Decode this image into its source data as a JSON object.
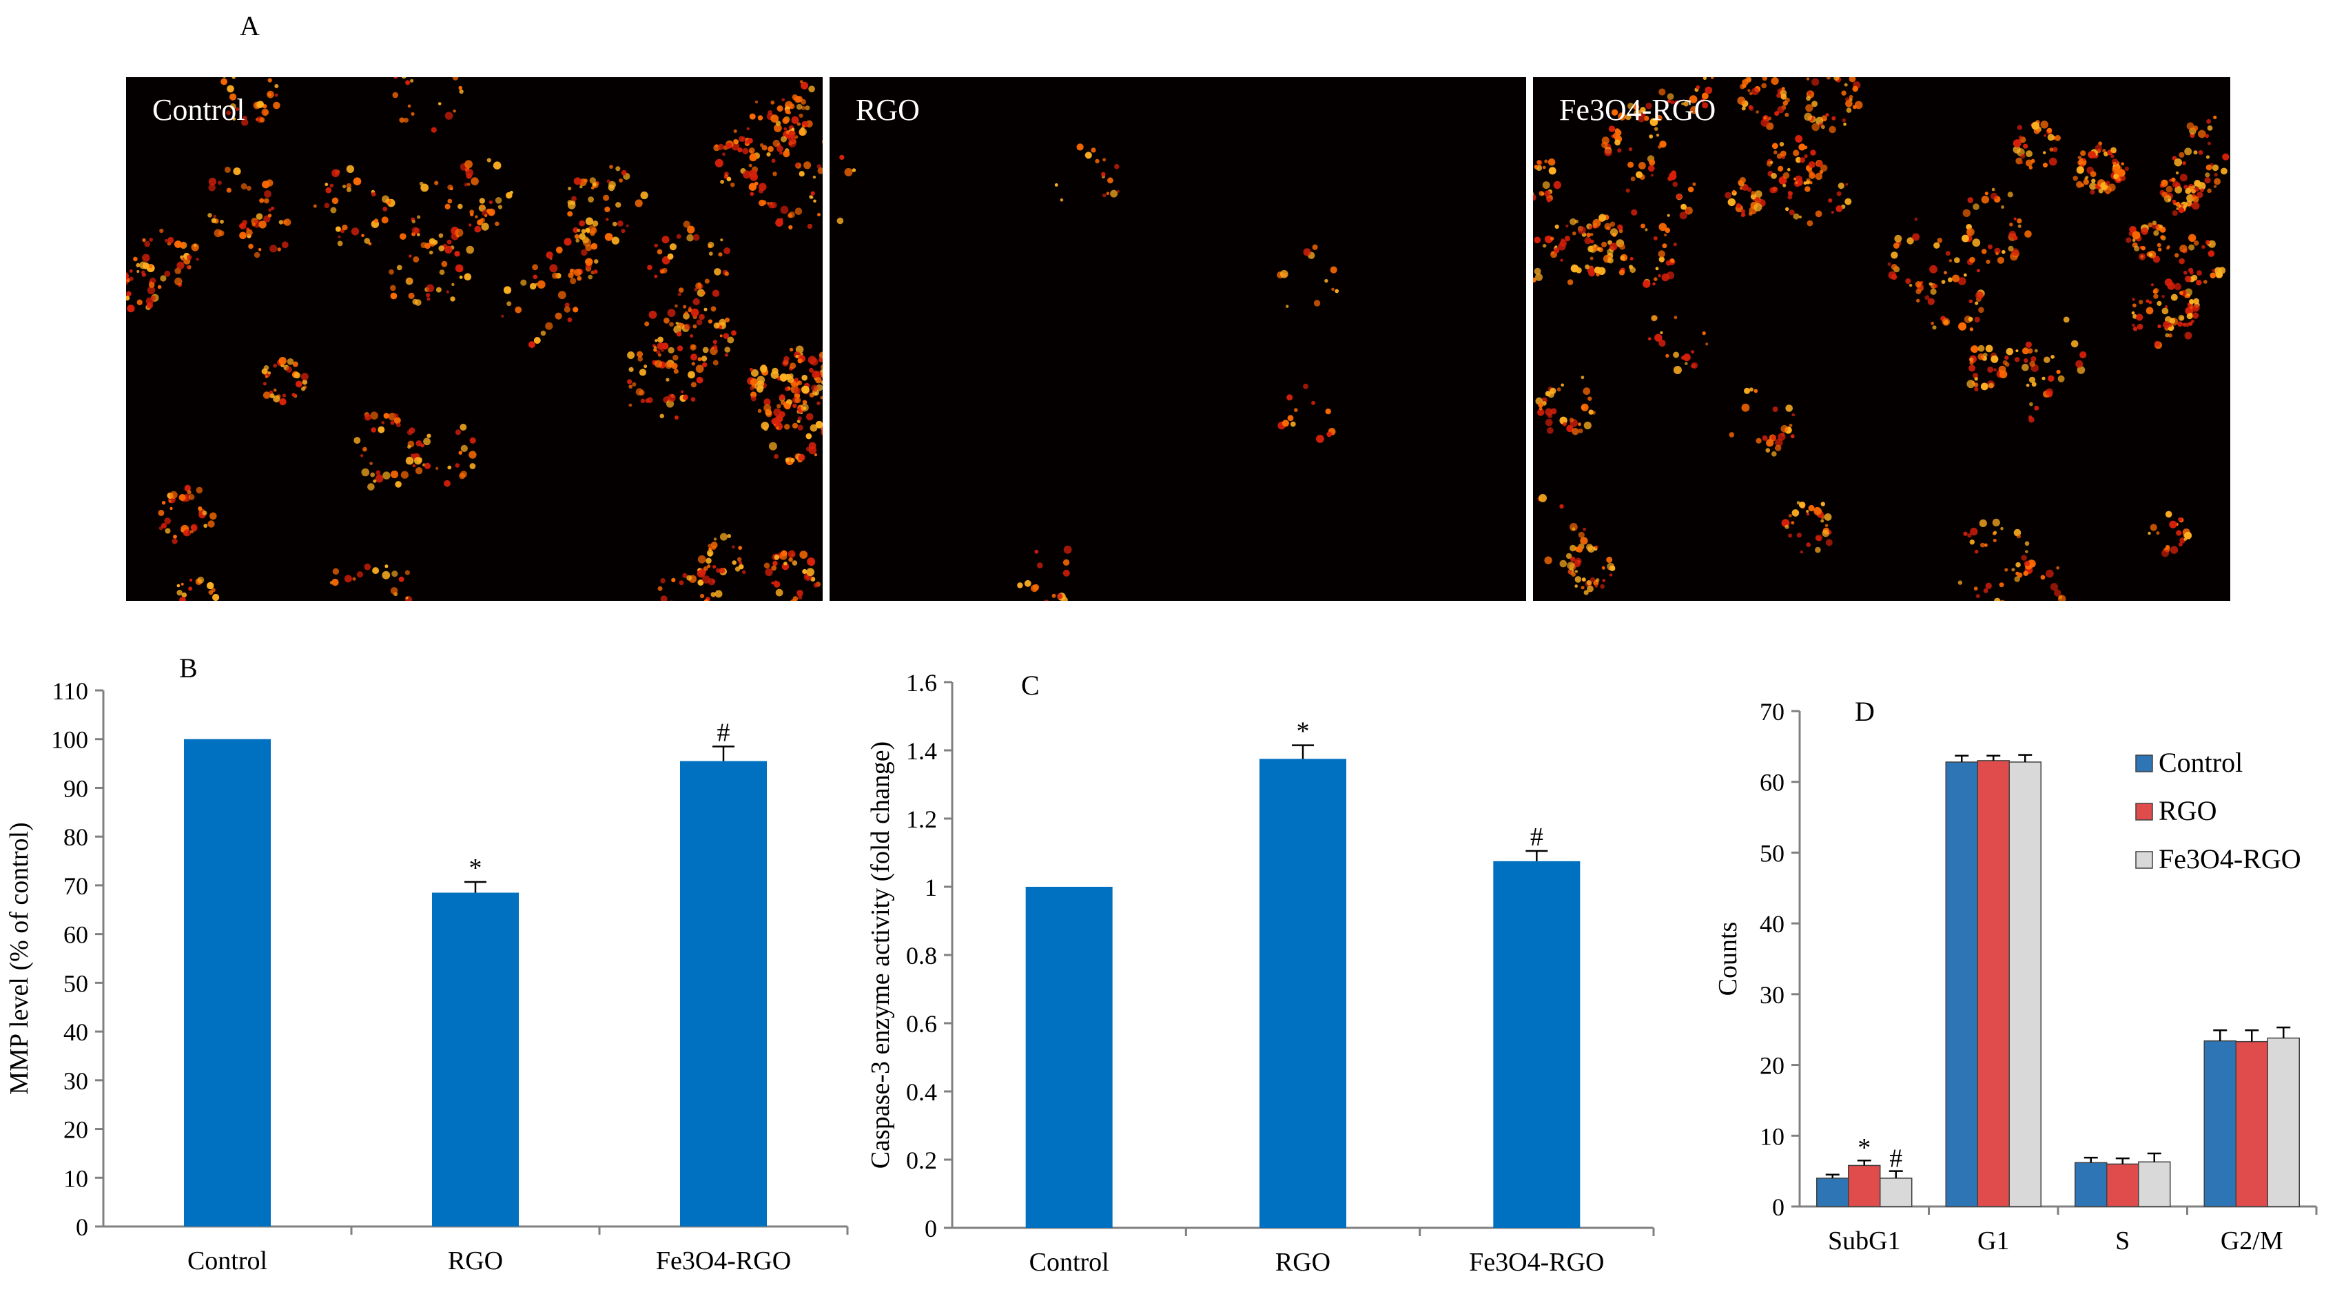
{
  "panel_a": {
    "letter": "A",
    "images": [
      {
        "label": "Control",
        "density": "high"
      },
      {
        "label": "RGO",
        "density": "low"
      },
      {
        "label": "Fe3O4-RGO",
        "density": "high"
      }
    ]
  },
  "colors": {
    "bar_b_c": "#0070C0",
    "control": "#2E75B6",
    "rgo": "#E04B4B",
    "fe3o4_rgo": "#D9D9D9",
    "fluorescence": "#FF6A00",
    "background_micro": "#050000"
  },
  "chart_data": [
    {
      "letter": "B",
      "type": "bar",
      "categories": [
        "Control",
        "RGO",
        "Fe3O4-RGO"
      ],
      "values": [
        100,
        68.5,
        95.5
      ],
      "errors": [
        0,
        2.2,
        3
      ],
      "markers": [
        "",
        "*",
        "#"
      ],
      "ylabel": "MMP level (% of control)",
      "ylim": [
        0,
        110
      ],
      "yticks": [
        "0",
        "10",
        "20",
        "30",
        "40",
        "50",
        "60",
        "70",
        "80",
        "90",
        "100",
        "110"
      ]
    },
    {
      "letter": "C",
      "type": "bar",
      "categories": [
        "Control",
        "RGO",
        "Fe3O4-RGO"
      ],
      "values": [
        1.0,
        1.375,
        1.075
      ],
      "errors": [
        0,
        0.04,
        0.03
      ],
      "markers": [
        "",
        "*",
        "#"
      ],
      "ylabel": "Caspase-3 enzyme activity (fold change)",
      "ylim": [
        0,
        1.6
      ],
      "yticks": [
        "0",
        "0.2",
        "0.4",
        "0.6",
        "0.8",
        "1",
        "1.2",
        "1.4",
        "1.6"
      ]
    },
    {
      "letter": "D",
      "type": "bar",
      "categories": [
        "SubG1",
        "G1",
        "S",
        "G2/M"
      ],
      "series": [
        {
          "name": "Control",
          "values": [
            4,
            62.8,
            6.2,
            23.4
          ],
          "errors": [
            0.5,
            0.9,
            0.7,
            1.5
          ]
        },
        {
          "name": "RGO",
          "values": [
            5.8,
            63,
            6,
            23.3
          ],
          "errors": [
            0.7,
            0.7,
            0.8,
            1.6
          ]
        },
        {
          "name": "Fe3O4-RGO",
          "values": [
            4,
            62.8,
            6.3,
            23.8
          ],
          "errors": [
            1,
            1,
            1.2,
            1.5
          ]
        }
      ],
      "markers": [
        [
          "",
          "*",
          "#"
        ],
        [
          "",
          "",
          ""
        ],
        [
          "",
          "",
          ""
        ],
        [
          "",
          "",
          ""
        ]
      ],
      "ylabel": "Counts",
      "ylim": [
        0,
        70
      ],
      "yticks": [
        "0",
        "10",
        "20",
        "30",
        "40",
        "50",
        "60",
        "70"
      ],
      "legend": "top-right"
    }
  ]
}
